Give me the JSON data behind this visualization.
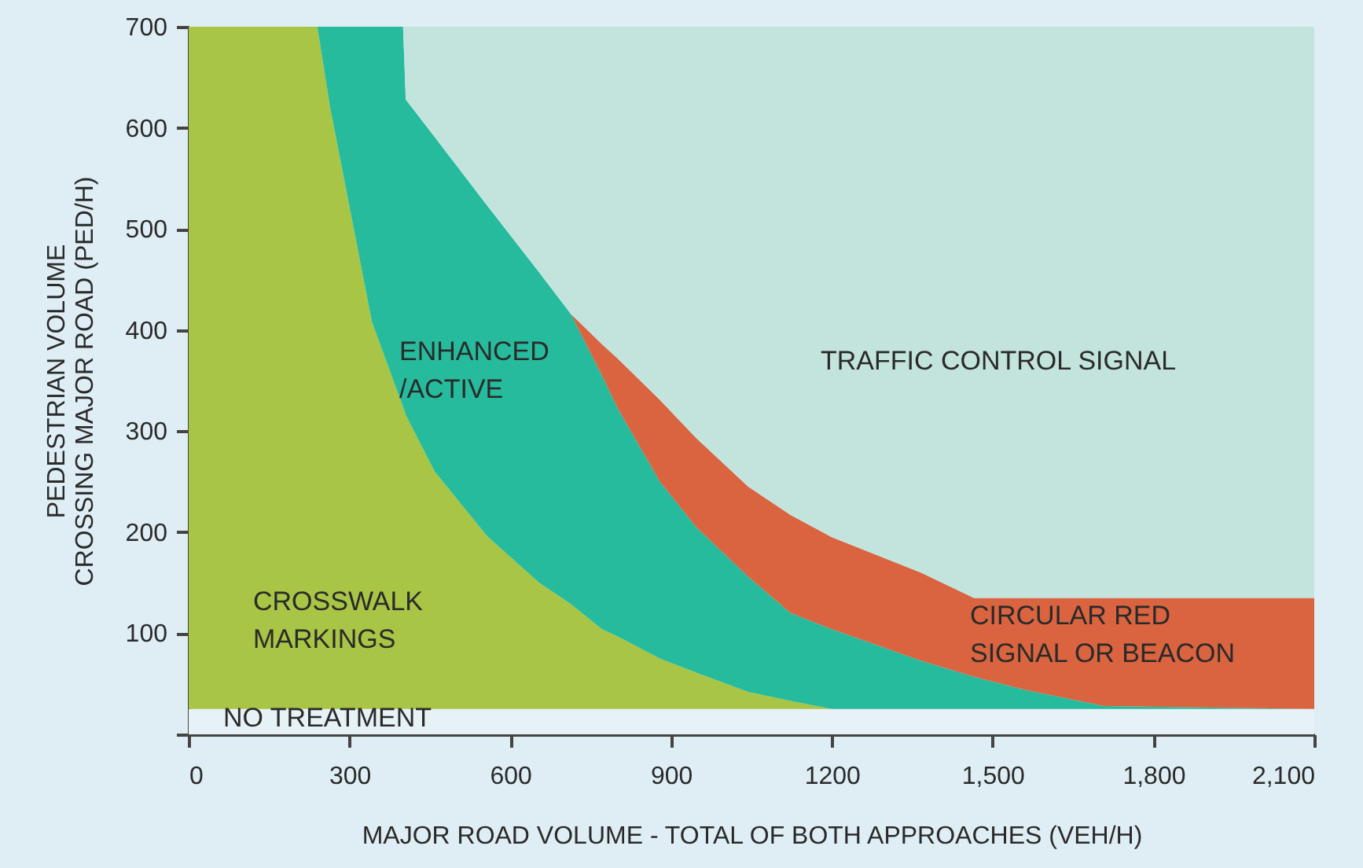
{
  "chart_data": {
    "type": "area",
    "stacked": true,
    "xlabel": "MAJOR ROAD VOLUME - TOTAL OF BOTH APPROACHES (VEH/H)",
    "ylabel": "PEDESTRIAN VOLUME\nCROSSING MAJOR ROAD (PED/H)",
    "x": [
      0,
      240,
      264,
      303,
      342,
      400,
      405,
      459,
      557,
      654,
      713,
      771,
      800,
      879,
      947,
      1044,
      1123,
      1200,
      1366,
      1465,
      1561,
      1708,
      2100
    ],
    "series": [
      {
        "color": "#e7f2f7",
        "values": [
          25,
          25,
          25,
          25,
          25,
          25,
          25,
          25,
          25,
          25,
          25,
          25,
          25,
          25,
          25,
          25,
          25,
          25,
          25,
          25,
          25,
          25,
          25
        ]
      },
      {
        "color": "#a8c545",
        "values": [
          675,
          675,
          595,
          489,
          383,
          299,
          291,
          235,
          171,
          125,
          104,
          79,
          72,
          50,
          36,
          17,
          8,
          0,
          null,
          null,
          null,
          null,
          null
        ]
      },
      {
        "color": "#26bb9d",
        "values": [
          null,
          0,
          80,
          186,
          292,
          376,
          312,
          331,
          327,
          307,
          287,
          251,
          226,
          175,
          144,
          114,
          87,
          79,
          48,
          32,
          19,
          3,
          0
        ]
      },
      {
        "color": "#d9643f",
        "values": [
          null,
          null,
          null,
          null,
          null,
          null,
          null,
          null,
          null,
          null,
          0,
          31,
          49,
          81,
          88,
          89,
          97,
          91,
          87,
          78,
          91,
          107,
          110
        ]
      },
      {
        "color": "#c3e4dd",
        "values": [
          null,
          null,
          null,
          null,
          null,
          0,
          72,
          109,
          177,
          243,
          284,
          314,
          328,
          369,
          407,
          455,
          483,
          505,
          540,
          565,
          565,
          565,
          565
        ]
      }
    ],
    "xlim": [
      0,
      2100
    ],
    "ylim": [
      0,
      700
    ],
    "xticks": [
      0,
      300,
      600,
      900,
      1200,
      {
        "value": 1500,
        "label": "1,500"
      },
      {
        "value": 1800,
        "label": "1,800"
      },
      {
        "value": 2100,
        "label": "2,100"
      }
    ],
    "yticks": [
      {
        "value": 0,
        "label": null
      },
      100,
      200,
      300,
      400,
      500,
      600,
      700
    ],
    "annotations": [
      "CROSSWALK\nMARKINGS",
      "ENHANCED\n /ACTIVE",
      "TRAFFIC  CONTROL SIGNAL",
      "CIRCULAR RED\nSIGNAL OR BEACON",
      "NO TREATMENT"
    ]
  }
}
